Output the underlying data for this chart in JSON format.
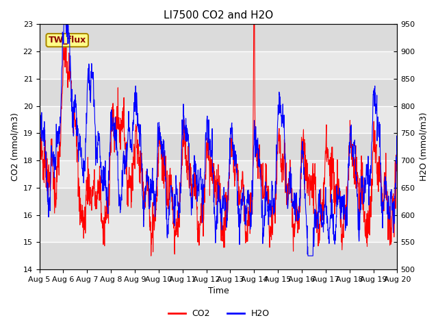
{
  "title": "LI7500 CO2 and H2O",
  "xlabel": "Time",
  "ylabel_left": "CO2 (mmol/m3)",
  "ylabel_right": "H2O (mmol/m3)",
  "co2_color": "#FF0000",
  "h2o_color": "#0000FF",
  "ylim_left": [
    14.0,
    23.0
  ],
  "ylim_right": [
    500,
    950
  ],
  "yticks_left": [
    14.0,
    15.0,
    16.0,
    17.0,
    18.0,
    19.0,
    20.0,
    21.0,
    22.0,
    23.0
  ],
  "yticks_right": [
    500,
    550,
    600,
    650,
    700,
    750,
    800,
    850,
    900,
    950
  ],
  "xtick_labels": [
    "Aug 5",
    "Aug 6",
    "Aug 7",
    "Aug 8",
    "Aug 9",
    "Aug 10",
    "Aug 11",
    "Aug 12",
    "Aug 13",
    "Aug 14",
    "Aug 15",
    "Aug 16",
    "Aug 17",
    "Aug 18",
    "Aug 19",
    "Aug 20"
  ],
  "annotation_text": "TW_flux",
  "bg_color": "#FFFFFF",
  "plot_bg_color": "#E8E8E8",
  "grid_color": "#FFFFFF",
  "title_fontsize": 11,
  "label_fontsize": 9,
  "tick_fontsize": 8,
  "legend_fontsize": 9,
  "linewidth": 0.8,
  "seed": 7
}
